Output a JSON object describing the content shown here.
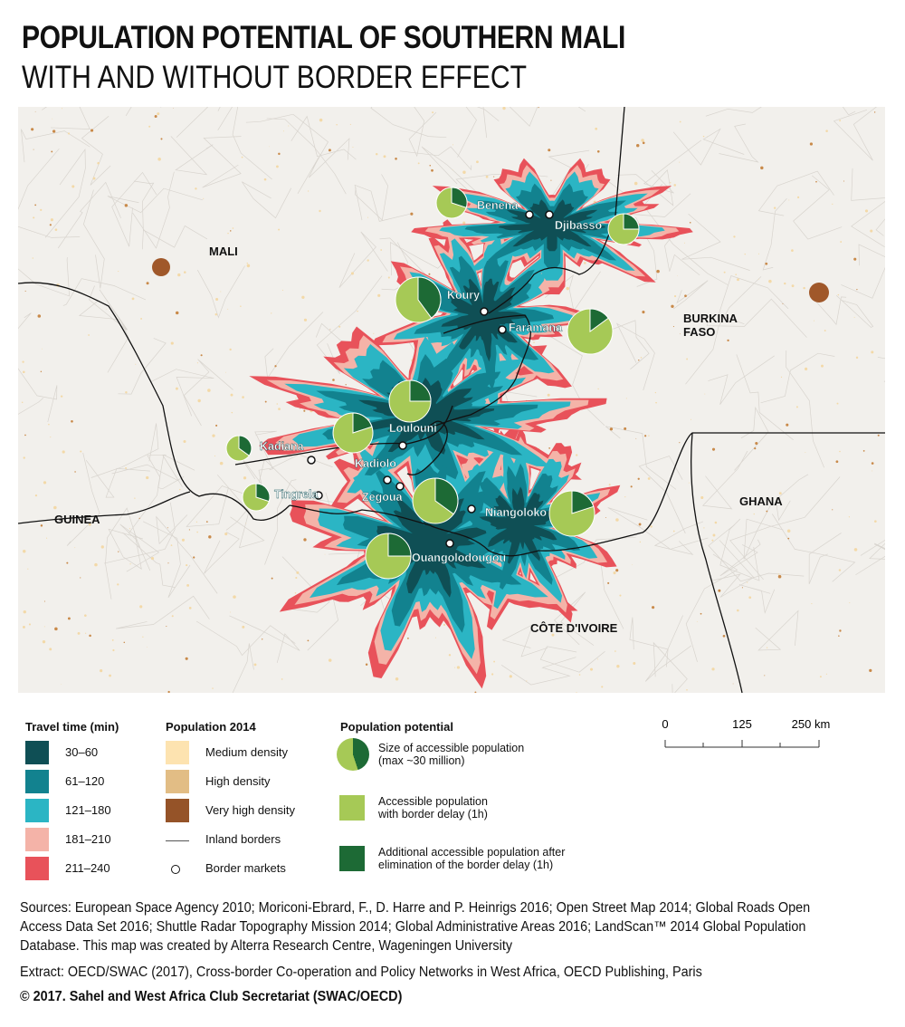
{
  "header": {
    "title": "POPULATION POTENTIAL OF SOUTHERN MALI",
    "subtitle": "WITH AND WITHOUT BORDER EFFECT"
  },
  "map": {
    "countries": [
      "MALI",
      "BURKINA\nFASO",
      "GUINEA",
      "GHANA",
      "CÔTE D'IVOIRE"
    ],
    "markets": [
      "Benena",
      "Djibasso",
      "Koury",
      "Faramana",
      "Loulouni",
      "Kadiana",
      "Kadiolo",
      "Tingrela",
      "Zegoua",
      "Niangoloko",
      "Ouangolodougou"
    ]
  },
  "legend": {
    "travel_time": {
      "title": "Travel time (min)",
      "items": [
        "30–60",
        "61–120",
        "121–180",
        "181–210",
        "211–240"
      ]
    },
    "population": {
      "title": "Population 2014",
      "items": [
        "Medium density",
        "High density",
        "Very high density",
        "Inland borders",
        "Border markets"
      ]
    },
    "potential": {
      "title": "Population potential",
      "items": [
        "Size of accessible population\n(max ~30 million)",
        "Accessible population\nwith border delay (1h)",
        "Additional accessible population after\nelimination of the border delay (1h)"
      ]
    },
    "scale": [
      "0",
      "125",
      "250 km"
    ]
  },
  "footer": {
    "sources": "Sources: European Space Agency 2010;  Moriconi-Ebrard, F., D. Harre and P. Heinrigs 2016; Open Street Map 2014; Global Roads Open Access Data Set 2016; Shuttle Radar Topography Mission 2014; Global Administrative Areas 2016; LandScan™ 2014 Global Population Database. This map was created by Alterra Research Centre, Wageningen University",
    "extract": "Extract: OECD/SWAC (2017), Cross-border Co-operation and Policy Networks in West Africa, OECD Publishing, Paris",
    "copyright": "© 2017. Sahel and West Africa Club Secretariat (SWAC/OECD)"
  }
}
